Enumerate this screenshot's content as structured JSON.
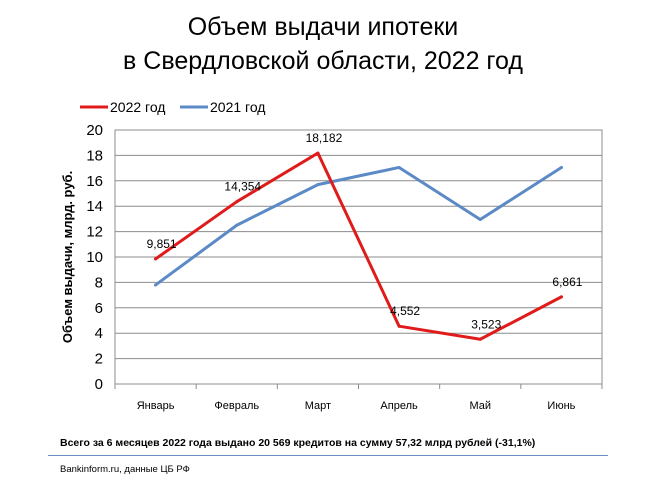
{
  "chart_data": {
    "type": "line",
    "title_line1": "Объем выдачи ипотеки",
    "title_line2": "в Свердловской  области, 2022 год",
    "ylabel": "Объем выдачи, млрд. руб.",
    "xlabel": "",
    "ylim": [
      0,
      20
    ],
    "ytick_step": 2,
    "categories": [
      "Январь",
      "Февраль",
      "Март",
      "Апрель",
      "Май",
      "Июнь"
    ],
    "legend_position": "top-left",
    "grid": "horizontal",
    "series": [
      {
        "name": "2022 год",
        "color": "#e01b1b",
        "values": [
          9.851,
          14.354,
          18.182,
          4.552,
          3.523,
          6.861
        ],
        "labels": [
          "9,851",
          "14,354",
          "18,182",
          "4,552",
          "3,523",
          "6,861"
        ]
      },
      {
        "name": "2021 год",
        "color": "#5b8ac6",
        "values": [
          7.8,
          12.5,
          15.7,
          17.05,
          12.95,
          17.05
        ]
      }
    ]
  },
  "footnote": "Всего за  6 месяцев  2022 года  выдано 20 569 кредитов на сумму  57,32 млрд рублей  (-31,1%)",
  "source": "Bankinform.ru,  данные ЦБ РФ"
}
